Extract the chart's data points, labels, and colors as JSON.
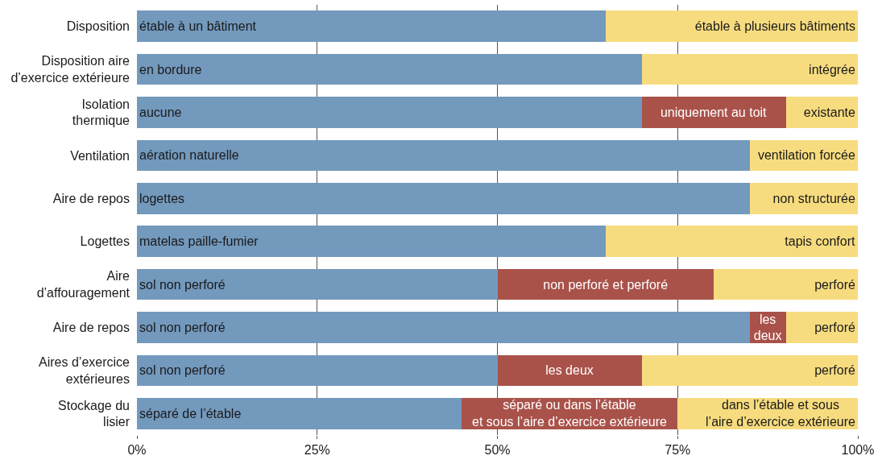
{
  "chart_data": {
    "type": "bar",
    "orientation": "horizontal",
    "stacked": true,
    "categories": [
      "Disposition",
      "Disposition aire\nd’exercice extérieure",
      "Isolation\nthermique",
      "Ventilation",
      "Aire de repos",
      "Logettes",
      "Aire\nd’affouragement",
      "Aire de repos",
      "Aires d’exercice\nextérieures",
      "Stockage du\nlisier"
    ],
    "series": [
      {
        "color": "#7399bd",
        "values": [
          65,
          70,
          70,
          85,
          85,
          65,
          50,
          85,
          50,
          45
        ],
        "value_labels": [
          "étable à un bâtiment",
          "en bordure",
          "aucune",
          "aération naturelle",
          "logettes",
          "matelas paille-fumier",
          "sol non perforé",
          "sol non perforé",
          "sol non perforé",
          "séparé de l’étable"
        ]
      },
      {
        "color": "#a9524a",
        "values": [
          null,
          null,
          20,
          null,
          null,
          null,
          30,
          5,
          20,
          30
        ],
        "value_labels": [
          null,
          null,
          "uniquement au toit",
          null,
          null,
          null,
          "non perforé et perforé",
          "les\ndeux",
          "les deux",
          "séparé ou dans l’étable\net sous l’aire d’exercice extérieure"
        ]
      },
      {
        "color": "#f7dc7f",
        "values": [
          35,
          30,
          10,
          15,
          15,
          35,
          20,
          10,
          30,
          25
        ],
        "value_labels": [
          "étable à plusieurs bâtiments",
          "intégrée",
          "existante",
          "ventilation forcée",
          "non structurée",
          "tapis confort",
          "perforé",
          "perforé",
          "perforé",
          "dans l’étable et sous\nl’aire d’exercice extérieure"
        ]
      }
    ],
    "xlim": [
      0,
      100
    ],
    "xticks": [
      {
        "value": 0,
        "label": "0%"
      },
      {
        "value": 25,
        "label": "25%"
      },
      {
        "value": 50,
        "label": "50%"
      },
      {
        "value": 75,
        "label": "75%"
      },
      {
        "value": 100,
        "label": "100%"
      }
    ],
    "grid": "x"
  }
}
